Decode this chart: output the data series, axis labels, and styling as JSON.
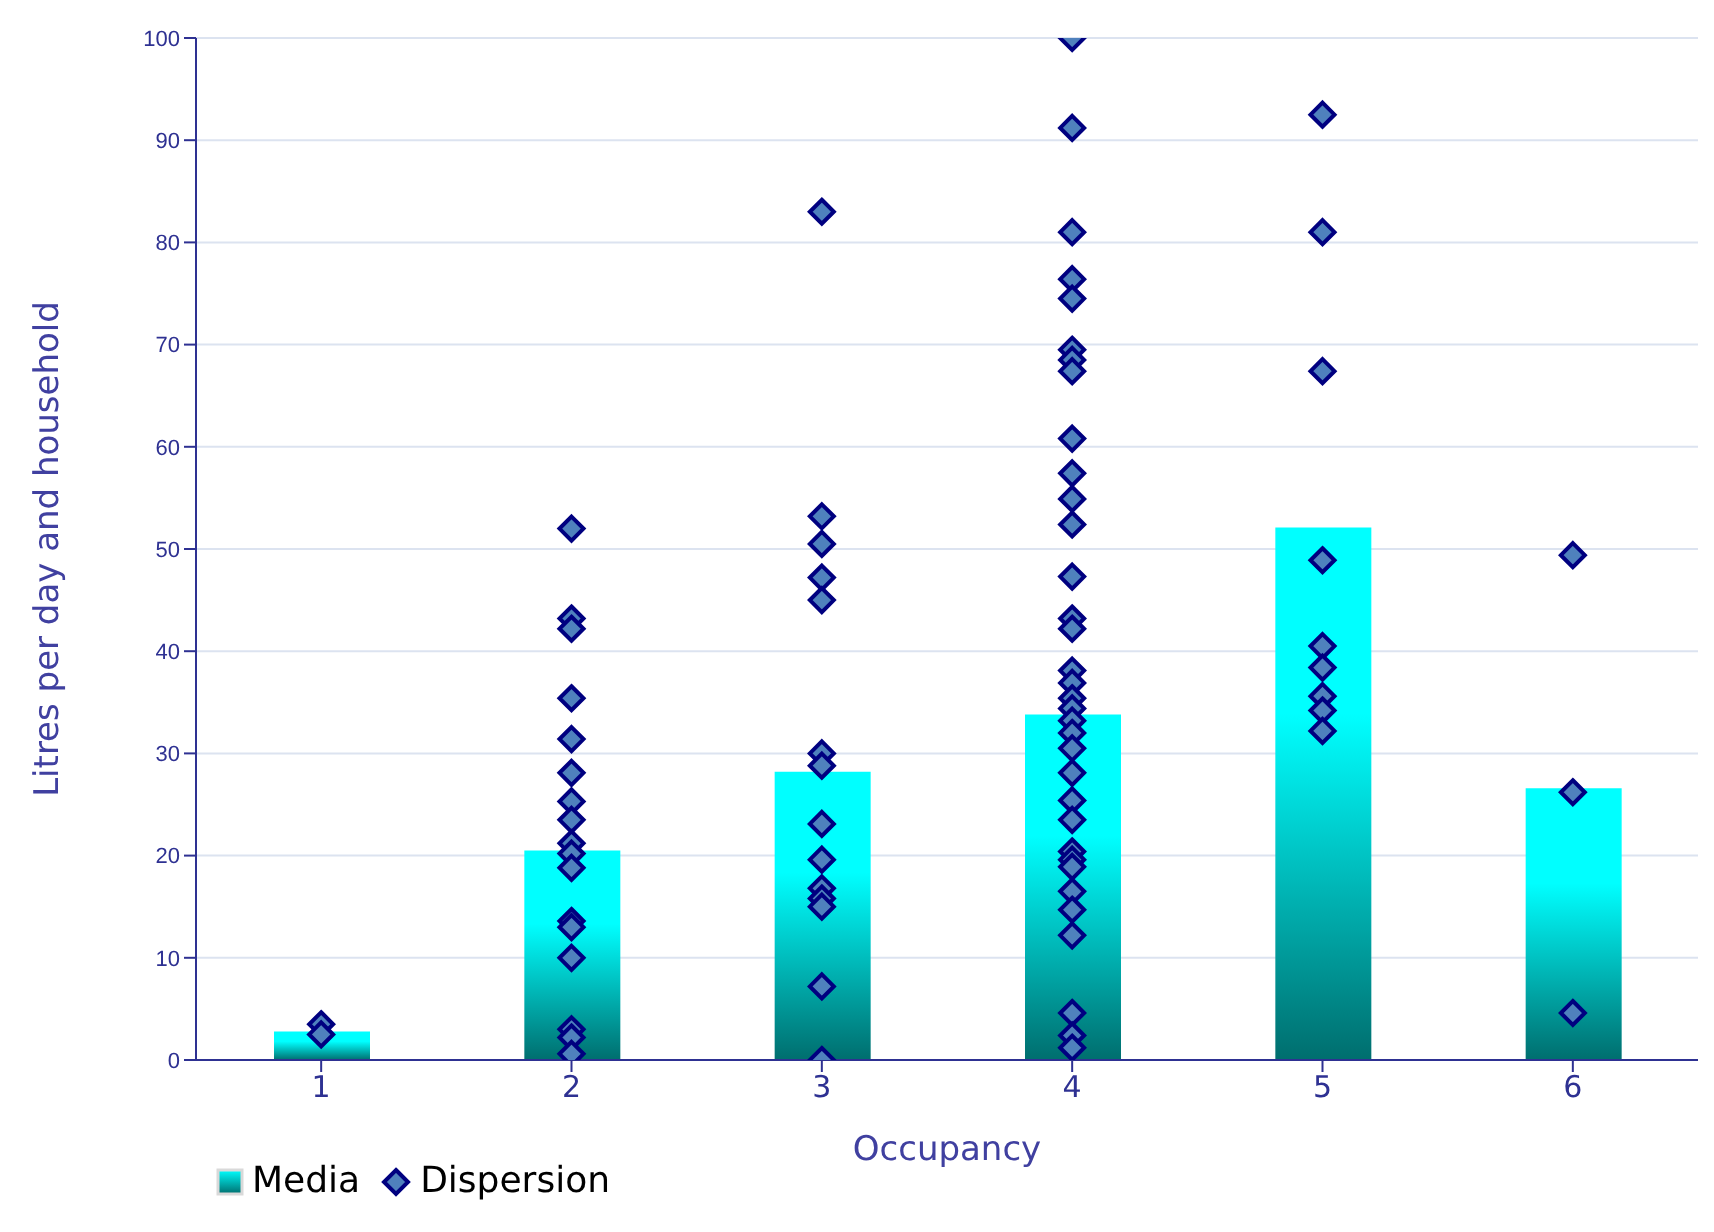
{
  "chart_data": {
    "type": "bar",
    "xlabel": "Occupancy",
    "ylabel": "Litres per day and household",
    "categories": [
      "1",
      "2",
      "3",
      "4",
      "5",
      "6"
    ],
    "ylim": [
      0,
      100
    ],
    "yticks": [
      0,
      10,
      20,
      30,
      40,
      50,
      60,
      70,
      80,
      90,
      100
    ],
    "grid": "y",
    "legend": "bottom left",
    "series": [
      {
        "name": "Media",
        "color": "#00ffff",
        "values": [
          2.8,
          20.5,
          28.2,
          33.8,
          52.1,
          26.6
        ]
      },
      {
        "name": "Dispersion",
        "type": "scatter",
        "color": "#4f81bd",
        "marker": "diamond",
        "x": [
          "1",
          "1",
          "2",
          "2",
          "2",
          "2",
          "2",
          "2",
          "2",
          "2",
          "2",
          "2",
          "2",
          "2",
          "2",
          "2",
          "2",
          "2",
          "2",
          "3",
          "3",
          "3",
          "3",
          "3",
          "3",
          "3",
          "3",
          "3",
          "3",
          "3",
          "3",
          "3",
          "3",
          "4",
          "4",
          "4",
          "4",
          "4",
          "4",
          "4",
          "4",
          "4",
          "4",
          "4",
          "4",
          "4",
          "4",
          "4",
          "4",
          "4",
          "4",
          "4",
          "4",
          "4",
          "4",
          "4",
          "4",
          "4",
          "4",
          "4",
          "4",
          "4",
          "4",
          "4",
          "4",
          "4",
          "4",
          "5",
          "5",
          "5",
          "5",
          "5",
          "5",
          "5",
          "5",
          "5",
          "6",
          "6",
          "6"
        ],
        "values": [
          3.5,
          2.5,
          52,
          43.2,
          42.2,
          35.4,
          31.4,
          28.1,
          25.3,
          23.5,
          21.2,
          20.2,
          18.8,
          13.6,
          13,
          10,
          3,
          2.2,
          0.6,
          83,
          53.2,
          50.5,
          47.2,
          45,
          30,
          28.8,
          23.1,
          19.6,
          16.8,
          15.8,
          15,
          7.2,
          0,
          100,
          91.2,
          81,
          76.4,
          74.5,
          69.5,
          68.5,
          67.4,
          60.8,
          57.4,
          54.9,
          52.4,
          47.3,
          43.2,
          42.2,
          38.1,
          36.9,
          35.4,
          34.4,
          33.2,
          32,
          30.5,
          28.1,
          25.4,
          23.5,
          20.4,
          19.6,
          18.9,
          16.5,
          14.7,
          12.2,
          4.6,
          2.4,
          1.2,
          92.5,
          81,
          67.4,
          48.9,
          40.5,
          38.4,
          35.6,
          34.2,
          32.2,
          49.4,
          26.2,
          4.6
        ]
      }
    ]
  }
}
